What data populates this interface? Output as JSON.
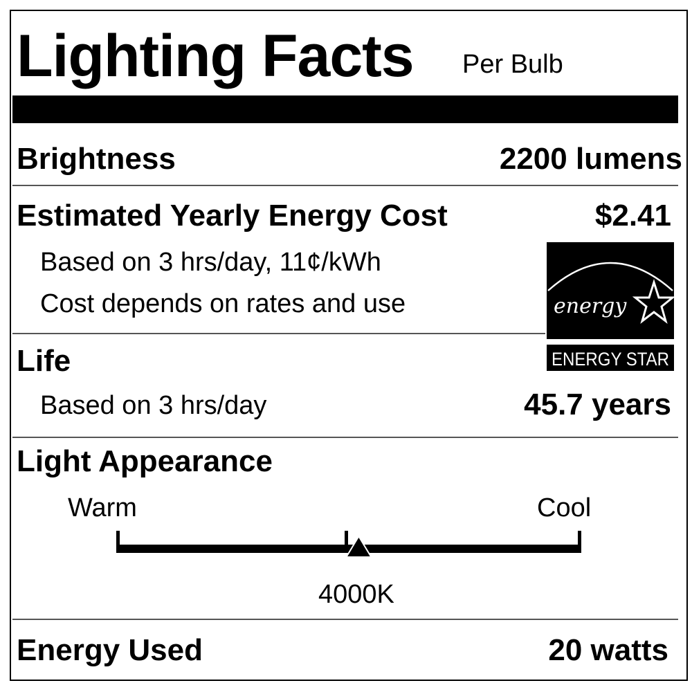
{
  "title": "Lighting Facts",
  "subtitle": "Per Bulb",
  "brightness": {
    "label": "Brightness",
    "value": "2200 lumens"
  },
  "energy_cost": {
    "label": "Estimated Yearly Energy Cost",
    "value": "$2.41",
    "note1": "Based on 3 hrs/day, 11¢/kWh",
    "note2": "Cost depends on rates and use"
  },
  "life": {
    "label": "Life",
    "note": "Based on 3 hrs/day",
    "value": "45.7 years"
  },
  "light_appearance": {
    "label": "Light Appearance",
    "warm_label": "Warm",
    "cool_label": "Cool",
    "value": "4000K",
    "marker_position_fraction": 0.52
  },
  "energy_used": {
    "label": "Energy Used",
    "value": "20 watts"
  },
  "logo": {
    "text_script": "energy",
    "text_banner": "ENERGY STAR",
    "icon": "energy-star-logo"
  }
}
